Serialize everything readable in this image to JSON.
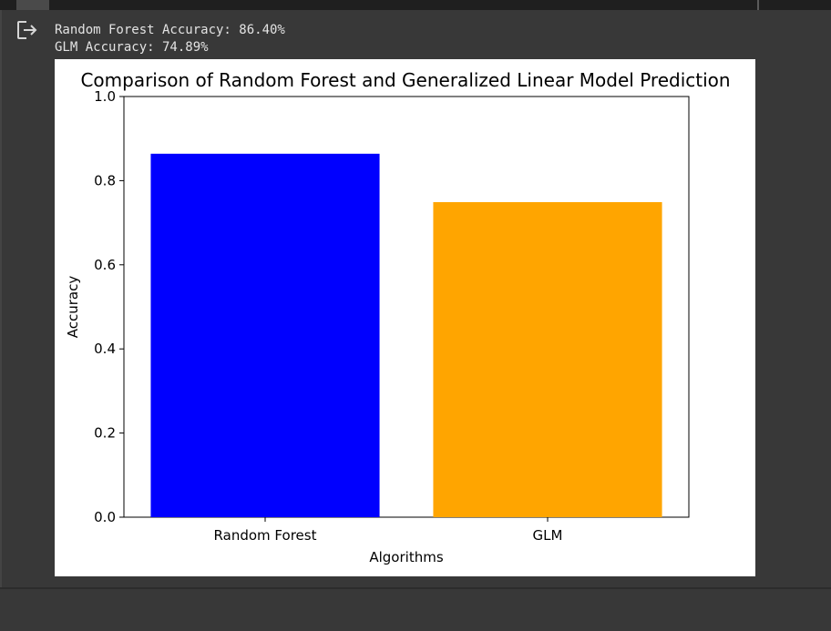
{
  "console": {
    "lines": [
      "Random Forest Accuracy: 86.40%",
      "GLM Accuracy: 74.89%"
    ],
    "output_icon": "output-redirect-icon"
  },
  "chart_data": {
    "type": "bar",
    "title": "Comparison of Random Forest and Generalized Linear Model Prediction",
    "categories": [
      "Random Forest",
      "GLM"
    ],
    "values": [
      0.864,
      0.7489
    ],
    "colors": [
      "#0000ff",
      "#ffa500"
    ],
    "xlabel": "Algorithms",
    "ylabel": "Accuracy",
    "ylim": [
      0,
      1.0
    ],
    "yticks": [
      "0.0",
      "0.2",
      "0.4",
      "0.6",
      "0.8",
      "1.0"
    ],
    "grid": false
  }
}
